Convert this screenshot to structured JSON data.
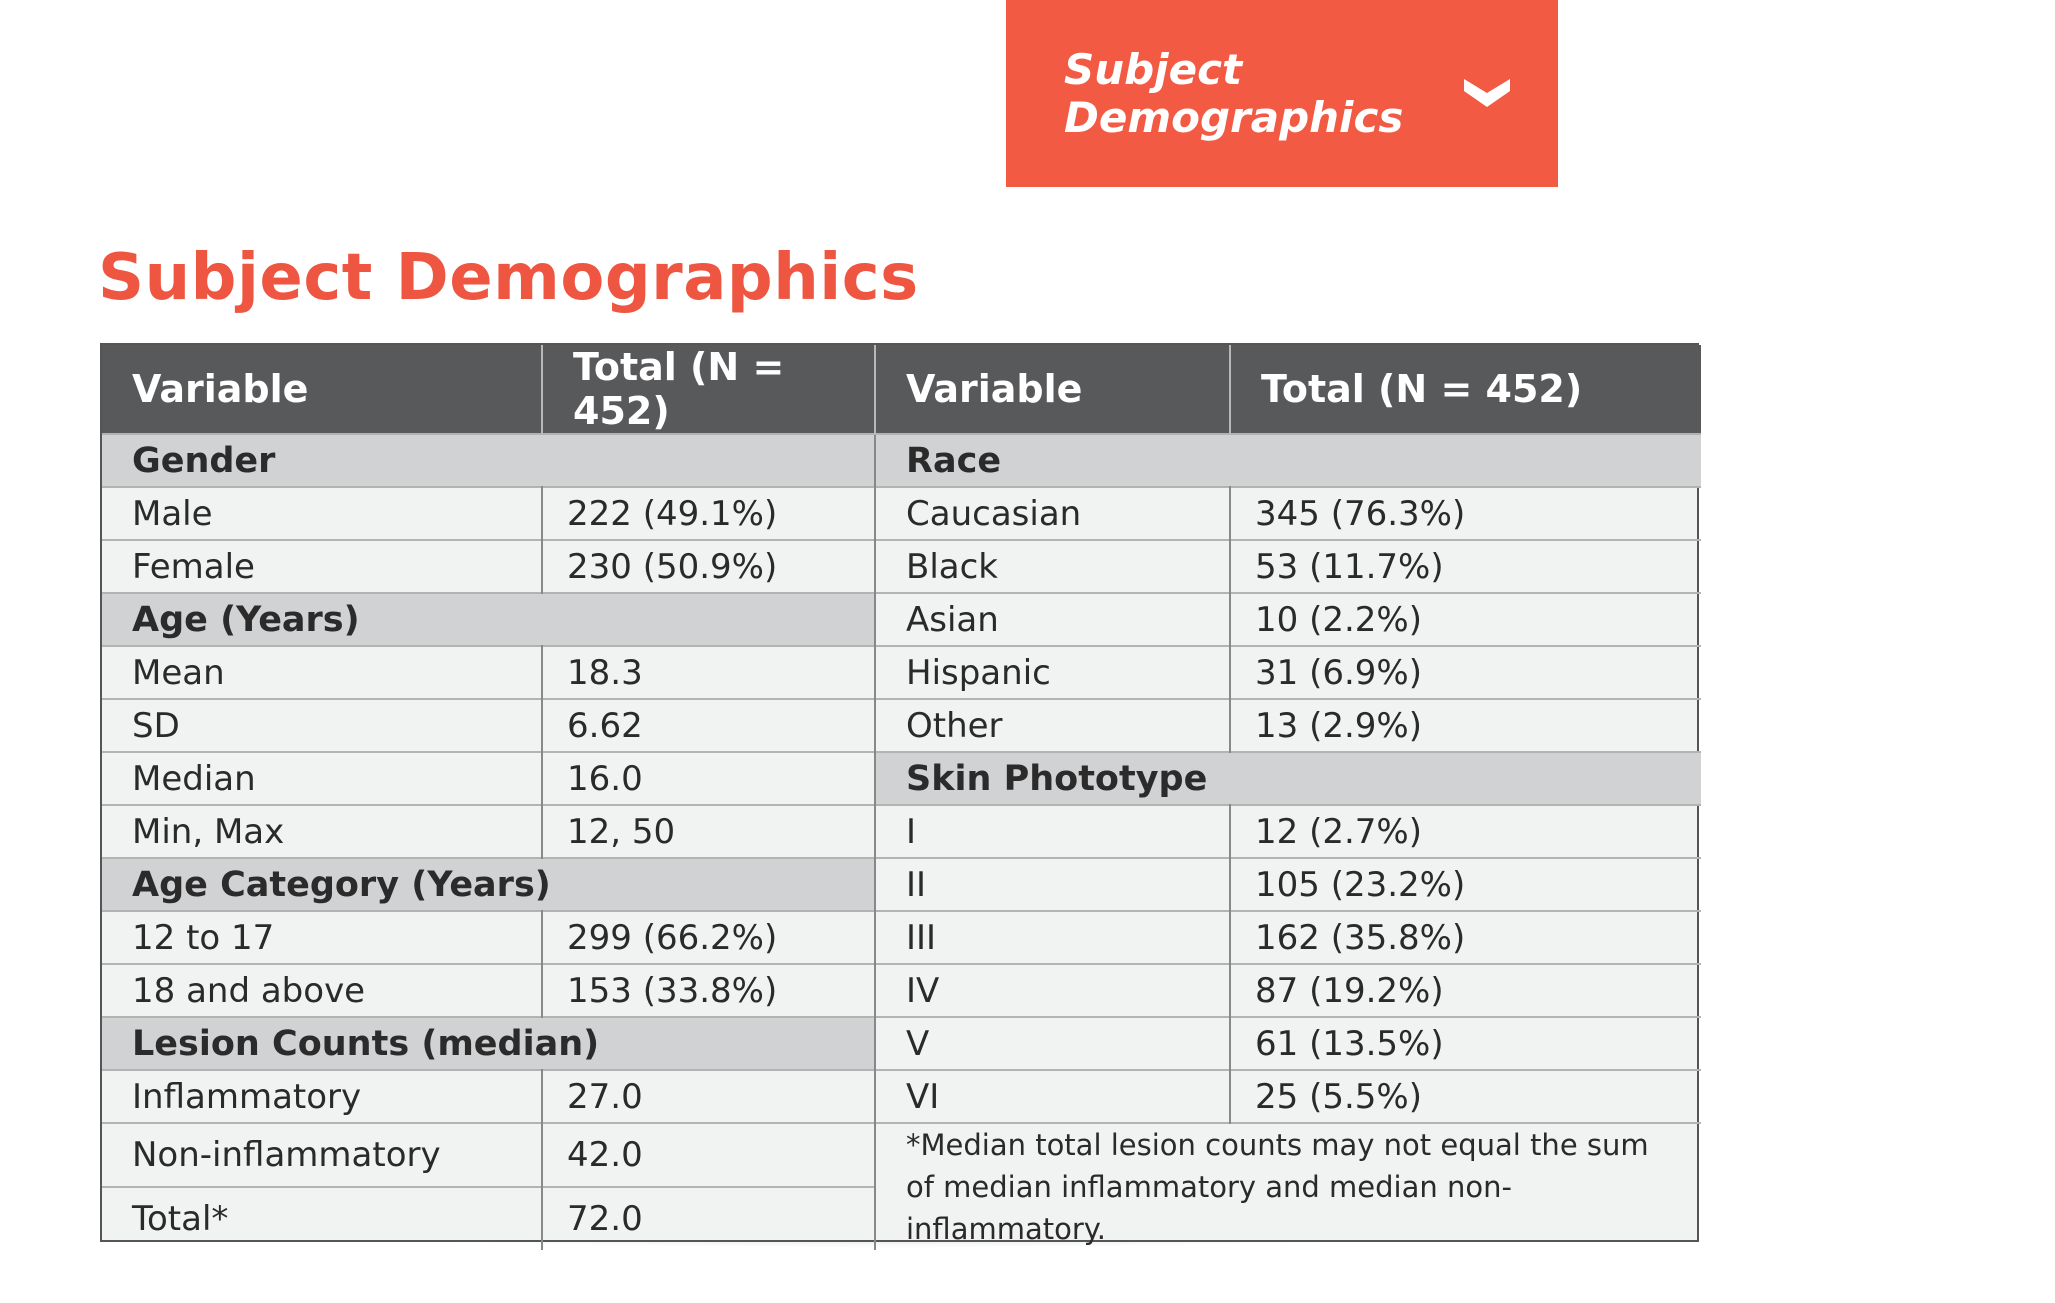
{
  "dropdown": {
    "label": "Subject\nDemographics",
    "icon": "chevron-down-icon"
  },
  "heading": "Subject Demographics",
  "colors": {
    "accent": "#f25a43",
    "header_bg": "#58595b",
    "section_bg": "#d1d2d4",
    "cell_bg": "#f1f2f2"
  },
  "table": {
    "headers": [
      "Variable",
      "Total (N = 452)",
      "Variable",
      "Total (N = 452)"
    ],
    "left": {
      "gender": {
        "title": "Gender",
        "rows": [
          [
            "Male",
            "222 (49.1%)"
          ],
          [
            "Female",
            "230 (50.9%)"
          ]
        ]
      },
      "age": {
        "title": "Age (Years)",
        "rows": [
          [
            "Mean",
            "18.3"
          ],
          [
            "SD",
            "6.62"
          ],
          [
            "Median",
            "16.0"
          ],
          [
            "Min, Max",
            "12, 50"
          ]
        ]
      },
      "agecat": {
        "title": "Age Category (Years)",
        "rows": [
          [
            "12 to 17",
            "299 (66.2%)"
          ],
          [
            "18 and above",
            "153 (33.8%)"
          ]
        ]
      },
      "lesion": {
        "title": "Lesion Counts (median)",
        "rows": [
          [
            "Inflammatory",
            "27.0"
          ],
          [
            "Non-inflammatory",
            "42.0"
          ],
          [
            "Total*",
            "72.0"
          ]
        ]
      }
    },
    "right": {
      "race": {
        "title": "Race",
        "rows": [
          [
            "Caucasian",
            "345 (76.3%)"
          ],
          [
            "Black",
            "53 (11.7%)"
          ],
          [
            "Asian",
            "10 (2.2%)"
          ],
          [
            "Hispanic",
            "31 (6.9%)"
          ],
          [
            "Other",
            "13 (2.9%)"
          ]
        ]
      },
      "skin": {
        "title": "Skin Phototype",
        "rows": [
          [
            "I",
            "12 (2.7%)"
          ],
          [
            "II",
            "105 (23.2%)"
          ],
          [
            "III",
            "162 (35.8%)"
          ],
          [
            "IV",
            "87 (19.2%)"
          ],
          [
            "V",
            "61 (13.5%)"
          ],
          [
            "VI",
            "25 (5.5%)"
          ]
        ]
      }
    },
    "footnote": "*Median total lesion counts may not equal the sum of median inflammatory and median non-inflammatory."
  }
}
